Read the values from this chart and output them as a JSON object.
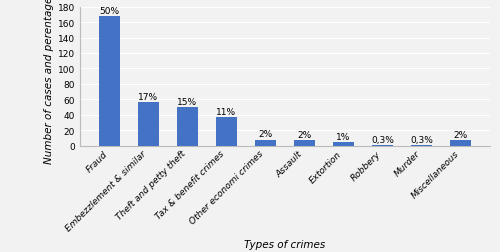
{
  "categories": [
    "Fraud",
    "Embezzlement & similar",
    "Theft and petty theft",
    "Tax & benefit crimes",
    "Other economi crimes",
    "Assault",
    "Extortion",
    "Robbery",
    "Murder",
    "Miscellaneous"
  ],
  "values": [
    168,
    57,
    50,
    37,
    8,
    7,
    5,
    1,
    1,
    7
  ],
  "labels": [
    "50%",
    "17%",
    "15%",
    "11%",
    "2%",
    "2%",
    "1%",
    "0,3%",
    "0,3%",
    "2%"
  ],
  "bar_color": "#4472C4",
  "ylabel": "Number of cases and perentages",
  "xlabel": "Types of crimes",
  "ylim": [
    0,
    180
  ],
  "yticks": [
    0,
    20,
    40,
    60,
    80,
    100,
    120,
    140,
    160,
    180
  ],
  "background_color": "#f2f2f2",
  "grid_color": "#ffffff",
  "label_fontsize": 6.5,
  "axis_label_fontsize": 7.5,
  "tick_fontsize": 6.5,
  "bar_width": 0.55
}
